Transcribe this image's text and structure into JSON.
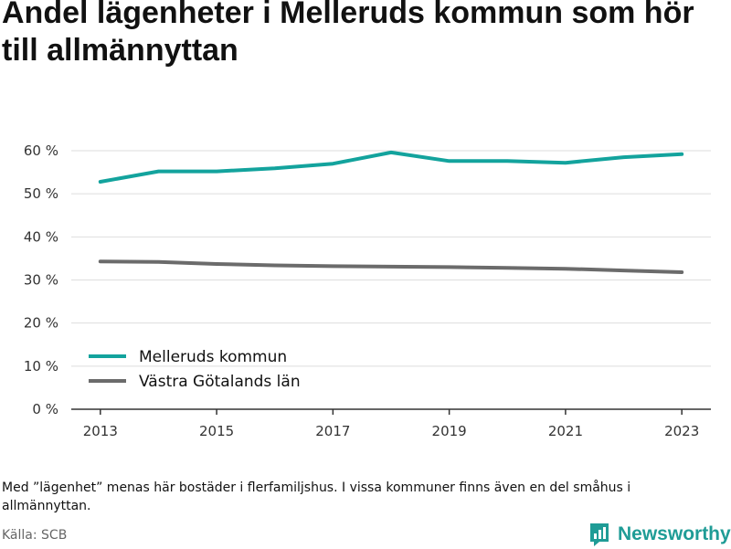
{
  "title": "Andel lägenheter i Melleruds kommun som hör till allmännyttan",
  "note": "Med ”lägenhet” menas här bostäder i flerfamiljshus. I vissa kommuner finns även en del småhus i allmännyttan.",
  "source": "Källa: SCB",
  "brand": {
    "name": "Newsworthy",
    "icon": "newsworthy-logo-icon",
    "color": "#1f9c96"
  },
  "chart_data": {
    "type": "line",
    "x": [
      2013,
      2014,
      2015,
      2016,
      2017,
      2018,
      2019,
      2020,
      2021,
      2022,
      2023
    ],
    "x_ticks": [
      "2013",
      "2015",
      "2017",
      "2019",
      "2021",
      "2023"
    ],
    "y_ticks": [
      "0 %",
      "10 %",
      "20 %",
      "30 %",
      "40 %",
      "50 %",
      "60 %"
    ],
    "ylim": [
      0,
      60
    ],
    "grid": true,
    "legend_position": "bottom-left",
    "series": [
      {
        "name": "Melleruds kommun",
        "color": "#13a39d",
        "values": [
          52.8,
          55.2,
          55.2,
          55.9,
          57.0,
          59.6,
          57.6,
          57.6,
          57.2,
          58.5,
          59.2
        ]
      },
      {
        "name": "Västra Götalands län",
        "color": "#6b6b6b",
        "values": [
          34.3,
          34.2,
          33.7,
          33.4,
          33.2,
          33.1,
          33.0,
          32.8,
          32.6,
          32.2,
          31.8
        ]
      }
    ]
  }
}
